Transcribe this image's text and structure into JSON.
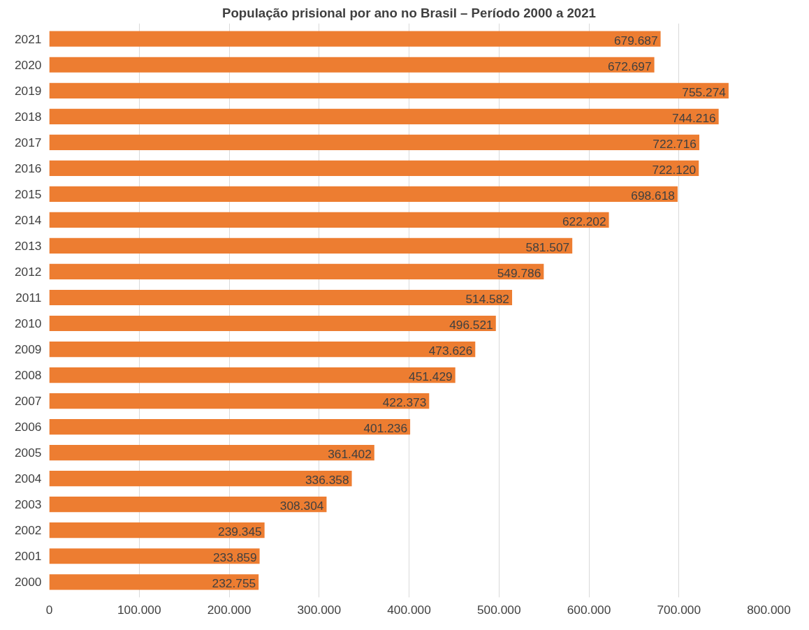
{
  "chart_data": {
    "type": "bar",
    "orientation": "horizontal",
    "title": "População prisional por ano no Brasil – Período 2000 a 2021",
    "categories": [
      "2021",
      "2020",
      "2019",
      "2018",
      "2017",
      "2016",
      "2015",
      "2014",
      "2013",
      "2012",
      "2011",
      "2010",
      "2009",
      "2008",
      "2007",
      "2006",
      "2005",
      "2004",
      "2003",
      "2002",
      "2001",
      "2000"
    ],
    "values": [
      679687,
      672697,
      755274,
      744216,
      722716,
      722120,
      698618,
      622202,
      581507,
      549786,
      514582,
      496521,
      473626,
      451429,
      422373,
      401236,
      361402,
      336358,
      308304,
      239345,
      233859,
      232755
    ],
    "value_labels": [
      "679.687",
      "672.697",
      "755.274",
      "744.216",
      "722.716",
      "722.120",
      "698.618",
      "622.202",
      "581.507",
      "549.786",
      "514.582",
      "496.521",
      "473.626",
      "451.429",
      "422.373",
      "401.236",
      "361.402",
      "336.358",
      "308.304",
      "239.345",
      "233.859",
      "232.755"
    ],
    "color": "#ed7d31",
    "xlim": [
      0,
      800000
    ],
    "xticks": [
      0,
      {
        "value": 100000,
        "label": "100.000"
      },
      {
        "value": 200000,
        "label": "200.000"
      },
      {
        "value": 300000,
        "label": "300.000"
      },
      {
        "value": 400000,
        "label": "400.000"
      },
      {
        "value": 500000,
        "label": "500.000"
      },
      {
        "value": 600000,
        "label": "600.000"
      },
      {
        "value": 700000,
        "label": "700.000"
      },
      {
        "value": 800000,
        "label": "800.000"
      }
    ],
    "grid": "x"
  }
}
